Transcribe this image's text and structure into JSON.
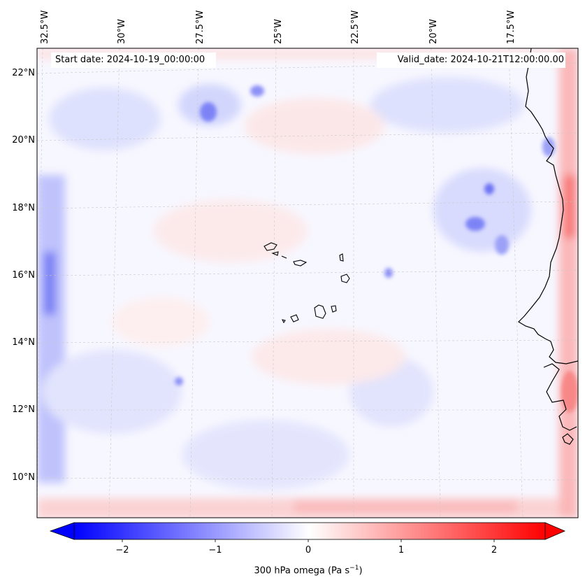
{
  "map": {
    "start_date": "Start date: 2024-10-19_00:00:00",
    "valid_date": "Valid_date: 2024-10-21T12:00:00.00",
    "longitude_labels": [
      "32.5°W",
      "30°W",
      "27.5°W",
      "25°W",
      "22.5°W",
      "20°W",
      "17.5°W"
    ],
    "latitude_labels": [
      "22°N",
      "20°N",
      "18°N",
      "16°N",
      "14°N",
      "12°N",
      "10°N"
    ],
    "colorbar": {
      "title_text": "300 hPa omega (Pa s",
      "title_exp": "−1",
      "title_close": ")",
      "ticks": [
        "−2",
        "−1",
        "0",
        "1",
        "2"
      ],
      "vmin": -2.6,
      "vmax": 2.6,
      "colors": {
        "low": "#0000ff",
        "mid": "#ffffff",
        "high": "#ff0000"
      }
    },
    "coastline_color": "#000000",
    "gridline_color": "#c8c8c8"
  }
}
